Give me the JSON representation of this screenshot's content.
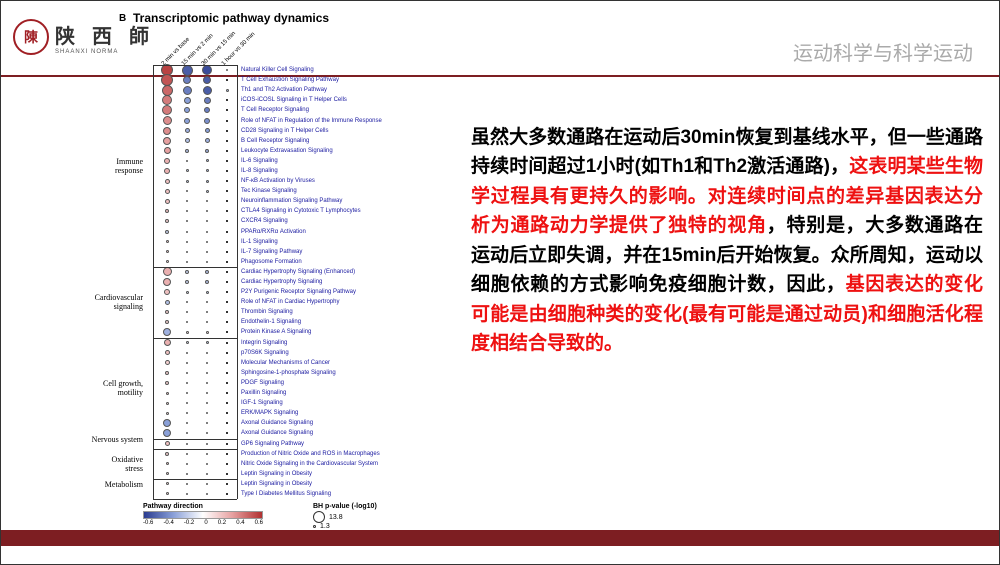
{
  "header": {
    "logo_char": "陳",
    "uni_cn": "陕 西 師",
    "uni_en": "SHAANXI NORMA",
    "right_text": "运动科学与科学运动"
  },
  "figure": {
    "panel": "B",
    "title": "Transcriptomic pathway dynamics",
    "columns": [
      "2 min vs base",
      "15 min vs 2 min",
      "30 min vs 15 min",
      "1 hour vs 30 min"
    ],
    "size_legend": {
      "title": "BH p-value (-log10)",
      "big": 13.8,
      "small": 1.3
    },
    "color_legend": {
      "title": "Pathway direction",
      "ticks": [
        "-0.6",
        "-0.4",
        "-0.2",
        "0",
        "0.2",
        "0.4",
        "0.6"
      ],
      "stops": [
        "#2a3b8f",
        "#8aa0d8",
        "#ffffff",
        "#e6a0a0",
        "#b03030"
      ]
    },
    "groups": [
      {
        "label": "Immune\nresponse",
        "first": 0,
        "last": 19
      },
      {
        "label": "Cardiovascular\nsignaling",
        "first": 20,
        "last": 26
      },
      {
        "label": "Cell growth,\nmotility",
        "first": 27,
        "last": 36
      },
      {
        "label": "Nervous system",
        "first": 37,
        "last": 37
      },
      {
        "label": "Oxidative\nstress",
        "first": 38,
        "last": 40
      },
      {
        "label": "Metabolism",
        "first": 41,
        "last": 42
      }
    ],
    "rows": [
      {
        "name": "Natural Killer Cell Signaling",
        "dots": [
          [
            0.55,
            12
          ],
          [
            -0.5,
            11
          ],
          [
            -0.55,
            10
          ],
          [
            -0.1,
            2
          ]
        ]
      },
      {
        "name": "T Cell Exhaustion Signaling Pathway",
        "dots": [
          [
            0.5,
            12
          ],
          [
            -0.4,
            8
          ],
          [
            -0.5,
            8
          ],
          [
            null,
            0
          ]
        ]
      },
      {
        "name": "Th1 and Th2 Activation Pathway",
        "dots": [
          [
            0.45,
            11
          ],
          [
            -0.4,
            9
          ],
          [
            -0.5,
            9
          ],
          [
            -0.2,
            3
          ]
        ]
      },
      {
        "name": "iCOS-iCOSL Signaling in T Helper Cells",
        "dots": [
          [
            0.4,
            10
          ],
          [
            -0.3,
            7
          ],
          [
            -0.4,
            7
          ],
          [
            null,
            0
          ]
        ]
      },
      {
        "name": "T Cell Receptor Signaling",
        "dots": [
          [
            0.4,
            10
          ],
          [
            -0.3,
            6
          ],
          [
            -0.4,
            6
          ],
          [
            null,
            0
          ]
        ]
      },
      {
        "name": "Role of NFAT in Regulation of the Immune Response",
        "dots": [
          [
            0.35,
            9
          ],
          [
            -0.3,
            6
          ],
          [
            -0.35,
            6
          ],
          [
            null,
            0
          ]
        ]
      },
      {
        "name": "CD28 Signaling in T Helper Cells",
        "dots": [
          [
            0.35,
            8
          ],
          [
            -0.25,
            5
          ],
          [
            -0.3,
            5
          ],
          [
            null,
            0
          ]
        ]
      },
      {
        "name": "B Cell Receptor Signaling",
        "dots": [
          [
            0.3,
            8
          ],
          [
            -0.2,
            5
          ],
          [
            -0.25,
            5
          ],
          [
            null,
            0
          ]
        ]
      },
      {
        "name": "Leukocyte Extravasation Signaling",
        "dots": [
          [
            0.3,
            7
          ],
          [
            -0.2,
            4
          ],
          [
            -0.25,
            4
          ],
          [
            null,
            0
          ]
        ]
      },
      {
        "name": "IL-6 Signaling",
        "dots": [
          [
            0.25,
            6
          ],
          [
            0.0,
            2
          ],
          [
            -0.2,
            3
          ],
          [
            null,
            0
          ]
        ]
      },
      {
        "name": "IL-8 Signaling",
        "dots": [
          [
            0.25,
            6
          ],
          [
            -0.15,
            3
          ],
          [
            -0.2,
            3
          ],
          [
            null,
            0
          ]
        ]
      },
      {
        "name": "NF-κB Activation by Viruses",
        "dots": [
          [
            0.2,
            5
          ],
          [
            -0.15,
            3
          ],
          [
            -0.2,
            3
          ],
          [
            null,
            0
          ]
        ]
      },
      {
        "name": "Tec Kinase Signaling",
        "dots": [
          [
            0.2,
            5
          ],
          [
            -0.1,
            2
          ],
          [
            -0.15,
            3
          ],
          [
            null,
            0
          ]
        ]
      },
      {
        "name": "Neuroinflammation Signaling Pathway",
        "dots": [
          [
            0.2,
            5
          ],
          [
            -0.1,
            2
          ],
          [
            -0.15,
            2
          ],
          [
            null,
            0
          ]
        ]
      },
      {
        "name": "CTLA4 Signaling in Cytotoxic T Lymphocytes",
        "dots": [
          [
            0.2,
            4
          ],
          [
            -0.1,
            2
          ],
          [
            -0.1,
            2
          ],
          [
            null,
            0
          ]
        ]
      },
      {
        "name": "CXCR4 Signaling",
        "dots": [
          [
            0.15,
            4
          ],
          [
            -0.1,
            2
          ],
          [
            -0.1,
            2
          ],
          [
            null,
            0
          ]
        ]
      },
      {
        "name": "PPARα/RXRα Activation",
        "dots": [
          [
            -0.15,
            4
          ],
          [
            0.1,
            2
          ],
          [
            -0.1,
            2
          ],
          [
            null,
            0
          ]
        ]
      },
      {
        "name": "IL-1 Signaling",
        "dots": [
          [
            0.15,
            3
          ],
          [
            0.0,
            1.5
          ],
          [
            -0.1,
            2
          ],
          [
            null,
            0
          ]
        ]
      },
      {
        "name": "IL-7 Signaling Pathway",
        "dots": [
          [
            0.15,
            3
          ],
          [
            -0.1,
            2
          ],
          [
            -0.1,
            2
          ],
          [
            null,
            0
          ]
        ]
      },
      {
        "name": "Phagosome Formation",
        "dots": [
          [
            0.1,
            3
          ],
          [
            0.0,
            1.5
          ],
          [
            -0.1,
            1.5
          ],
          [
            null,
            0
          ]
        ]
      },
      {
        "name": "Cardiac Hypertrophy Signaling (Enhanced)",
        "dots": [
          [
            0.25,
            9
          ],
          [
            -0.15,
            4
          ],
          [
            -0.2,
            4
          ],
          [
            null,
            0
          ]
        ]
      },
      {
        "name": "Cardiac Hypertrophy Signaling",
        "dots": [
          [
            0.25,
            8
          ],
          [
            -0.15,
            4
          ],
          [
            -0.2,
            4
          ],
          [
            null,
            0
          ]
        ]
      },
      {
        "name": "P2Y Purigenic Receptor Signaling Pathway",
        "dots": [
          [
            0.2,
            6
          ],
          [
            -0.1,
            3
          ],
          [
            -0.15,
            3
          ],
          [
            null,
            0
          ]
        ]
      },
      {
        "name": "Role of NFAT in Cardiac Hypertrophy",
        "dots": [
          [
            -0.2,
            5
          ],
          [
            -0.1,
            2
          ],
          [
            -0.1,
            2
          ],
          [
            null,
            0
          ]
        ]
      },
      {
        "name": "Thrombin Signaling",
        "dots": [
          [
            0.15,
            4
          ],
          [
            -0.1,
            2
          ],
          [
            -0.1,
            2
          ],
          [
            null,
            0
          ]
        ]
      },
      {
        "name": "Endothelin-1 Signaling",
        "dots": [
          [
            0.15,
            4
          ],
          [
            -0.1,
            2
          ],
          [
            -0.1,
            2
          ],
          [
            null,
            0
          ]
        ]
      },
      {
        "name": "Protein Kinase A Signaling",
        "dots": [
          [
            -0.25,
            8
          ],
          [
            0.1,
            3
          ],
          [
            0.1,
            3
          ],
          [
            null,
            0
          ]
        ]
      },
      {
        "name": "Integrin Signaling",
        "dots": [
          [
            0.25,
            7
          ],
          [
            -0.1,
            3
          ],
          [
            -0.15,
            3
          ],
          [
            null,
            0
          ]
        ]
      },
      {
        "name": "p70S6K Signaling",
        "dots": [
          [
            0.2,
            5
          ],
          [
            -0.1,
            2
          ],
          [
            -0.1,
            2
          ],
          [
            null,
            0
          ]
        ]
      },
      {
        "name": "Molecular Mechanisms of Cancer",
        "dots": [
          [
            0.15,
            5
          ],
          [
            -0.1,
            2
          ],
          [
            -0.1,
            2
          ],
          [
            null,
            0
          ]
        ]
      },
      {
        "name": "Sphingosine-1-phosphate Signaling",
        "dots": [
          [
            0.15,
            4
          ],
          [
            -0.1,
            2
          ],
          [
            -0.1,
            2
          ],
          [
            null,
            0
          ]
        ]
      },
      {
        "name": "PDGF Signaling",
        "dots": [
          [
            0.15,
            4
          ],
          [
            -0.1,
            2
          ],
          [
            -0.1,
            2
          ],
          [
            null,
            0
          ]
        ]
      },
      {
        "name": "Paxillin Signaling",
        "dots": [
          [
            0.15,
            3
          ],
          [
            -0.05,
            1.5
          ],
          [
            -0.1,
            1.5
          ],
          [
            null,
            0
          ]
        ]
      },
      {
        "name": "IGF-1 Signaling",
        "dots": [
          [
            0.1,
            3
          ],
          [
            -0.05,
            1.5
          ],
          [
            -0.05,
            1.5
          ],
          [
            null,
            0
          ]
        ]
      },
      {
        "name": "ERK/MAPK Signaling",
        "dots": [
          [
            0.1,
            3
          ],
          [
            -0.05,
            1.5
          ],
          [
            -0.05,
            1.5
          ],
          [
            null,
            0
          ]
        ]
      },
      {
        "name": "Axonal Guidance Signaling",
        "dots": [
          [
            -0.3,
            8
          ],
          [
            0.05,
            2
          ],
          [
            -0.05,
            2
          ],
          [
            null,
            0
          ]
        ]
      },
      {
        "name": "Axonal Guidance Signaling",
        "dots": [
          [
            -0.3,
            8
          ],
          [
            0.05,
            2
          ],
          [
            -0.05,
            2
          ],
          [
            null,
            0
          ]
        ]
      },
      {
        "name": "GP6 Signaling Pathway",
        "dots": [
          [
            0.2,
            5
          ],
          [
            -0.1,
            2
          ],
          [
            -0.1,
            2
          ],
          [
            null,
            0
          ]
        ]
      },
      {
        "name": "Production of Nitric Oxide and ROS in Macrophages",
        "dots": [
          [
            0.15,
            4
          ],
          [
            -0.1,
            2
          ],
          [
            -0.1,
            2
          ],
          [
            null,
            0
          ]
        ]
      },
      {
        "name": "Nitric Oxide Signaling in the Cardiovascular System",
        "dots": [
          [
            0.15,
            3
          ],
          [
            -0.05,
            1.5
          ],
          [
            -0.1,
            1.5
          ],
          [
            null,
            0
          ]
        ]
      },
      {
        "name": "Leptin Signaling in Obesity",
        "dots": [
          [
            0.1,
            3
          ],
          [
            -0.05,
            1.5
          ],
          [
            -0.05,
            1.5
          ],
          [
            null,
            0
          ]
        ]
      },
      {
        "name": "Leptin Signaling in Obesity",
        "dots": [
          [
            0.1,
            3
          ],
          [
            -0.05,
            1.5
          ],
          [
            -0.05,
            1.5
          ],
          [
            null,
            0
          ]
        ]
      },
      {
        "name": "Type I Diabetes Mellitus Signaling",
        "dots": [
          [
            0.1,
            3
          ],
          [
            -0.05,
            1.5
          ],
          [
            -0.05,
            1.5
          ],
          [
            null,
            0
          ]
        ]
      }
    ]
  },
  "rt": {
    "seg1_black": "虽然大多数通路在运动后30min恢复到基线水平，但一些通路持续时间超过1小时(如Th1和Th2激活通路)，",
    "seg2_red": "这表明某些生物学过程具有更持久的影响。对连续时间点的差异基因表达分析为通路动力学提供了独特的视角",
    "seg3_black": "，特别是，大多数通路在运动后立即失调，并在15min后开始恢复。众所周知，运动以细胞依赖的方式影响免疫细胞计数，因此，",
    "seg4_red": "基因表达的变化可能是由细胞种类的变化(最有可能是通过动员)和细胞活化程度相结合导致的。"
  }
}
